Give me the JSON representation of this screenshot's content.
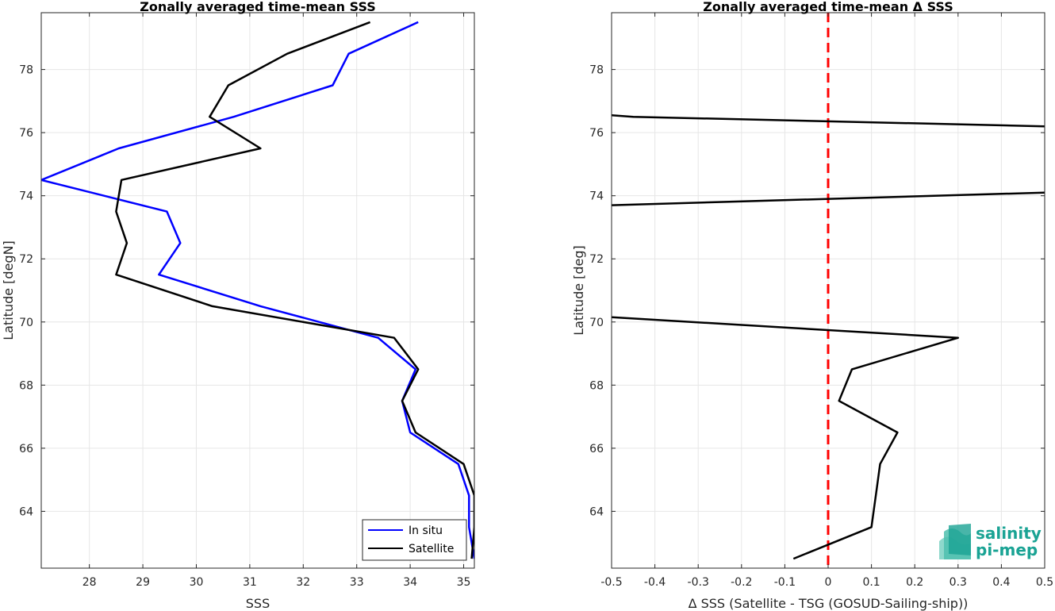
{
  "chart_data": [
    {
      "type": "line",
      "title": "Zonally averaged time-mean SSS",
      "xlabel": "SSS",
      "ylabel": "Latitude [degN]",
      "xlim": [
        27.1,
        35.2
      ],
      "ylim": [
        62.2,
        79.8
      ],
      "xticks": [
        28,
        29,
        30,
        31,
        32,
        33,
        34,
        35
      ],
      "yticks": [
        64,
        66,
        68,
        70,
        72,
        74,
        76,
        78
      ],
      "grid": true,
      "legend": {
        "placement": "bottom-right",
        "entries": [
          "In situ",
          "Satellite"
        ]
      },
      "series": [
        {
          "name": "In situ",
          "color": "#0000ff",
          "points": [
            [
              34.15,
              79.5
            ],
            [
              32.85,
              78.5
            ],
            [
              32.55,
              77.5
            ],
            [
              30.7,
              76.5
            ],
            [
              28.55,
              75.5
            ],
            [
              27.1,
              74.5
            ],
            [
              29.45,
              73.5
            ],
            [
              29.7,
              72.5
            ],
            [
              29.3,
              71.5
            ],
            [
              31.2,
              70.5
            ],
            [
              33.4,
              69.5
            ],
            [
              34.1,
              68.5
            ],
            [
              33.85,
              67.5
            ],
            [
              34.0,
              66.5
            ],
            [
              34.9,
              65.5
            ],
            [
              35.1,
              64.5
            ],
            [
              35.1,
              63.5
            ],
            [
              35.2,
              62.5
            ]
          ]
        },
        {
          "name": "Satellite",
          "color": "#000000",
          "points": [
            [
              33.25,
              79.5
            ],
            [
              31.7,
              78.5
            ],
            [
              30.6,
              77.5
            ],
            [
              30.25,
              76.5
            ],
            [
              31.2,
              75.5
            ],
            [
              28.6,
              74.5
            ],
            [
              28.5,
              73.5
            ],
            [
              28.7,
              72.5
            ],
            [
              28.5,
              71.5
            ],
            [
              30.3,
              70.5
            ],
            [
              33.7,
              69.5
            ],
            [
              34.15,
              68.5
            ],
            [
              33.85,
              67.5
            ],
            [
              34.1,
              66.5
            ],
            [
              35.0,
              65.5
            ],
            [
              35.2,
              64.5
            ],
            [
              35.2,
              63.5
            ],
            [
              35.15,
              62.5
            ]
          ]
        }
      ]
    },
    {
      "type": "line",
      "title": "Zonally averaged time-mean Δ SSS",
      "xlabel": "Δ SSS (Satellite - TSG (GOSUD-Sailing-ship))",
      "ylabel": "Latitude [deg]",
      "xlim": [
        -0.5,
        0.5
      ],
      "ylim": [
        62.2,
        79.8
      ],
      "xticks": [
        -0.5,
        -0.4,
        -0.3,
        -0.2,
        -0.1,
        0,
        0.1,
        0.2,
        0.3,
        0.4,
        0.5
      ],
      "yticks": [
        64,
        66,
        68,
        70,
        72,
        74,
        76,
        78
      ],
      "grid": true,
      "reference_line": {
        "x": 0,
        "color": "#ff0000",
        "style": "dashed"
      },
      "series": [
        {
          "color": "#000000",
          "points": [
            [
              -0.5,
              76.55
            ],
            [
              -0.45,
              76.5
            ],
            [
              0.5,
              76.2
            ]
          ]
        },
        {
          "color": "#000000",
          "points": [
            [
              -0.5,
              73.7
            ],
            [
              0.5,
              74.1
            ]
          ]
        },
        {
          "color": "#000000",
          "points": [
            [
              -0.5,
              70.15
            ],
            [
              0.3,
              69.5
            ],
            [
              0.055,
              68.5
            ],
            [
              0.025,
              67.5
            ],
            [
              0.16,
              66.5
            ],
            [
              0.12,
              65.5
            ],
            [
              0.11,
              64.5
            ],
            [
              0.1,
              63.5
            ],
            [
              -0.08,
              62.5
            ]
          ]
        }
      ]
    }
  ],
  "logo": {
    "line1": "salinity",
    "line2": "pi-mep",
    "color": "#1aa394"
  }
}
